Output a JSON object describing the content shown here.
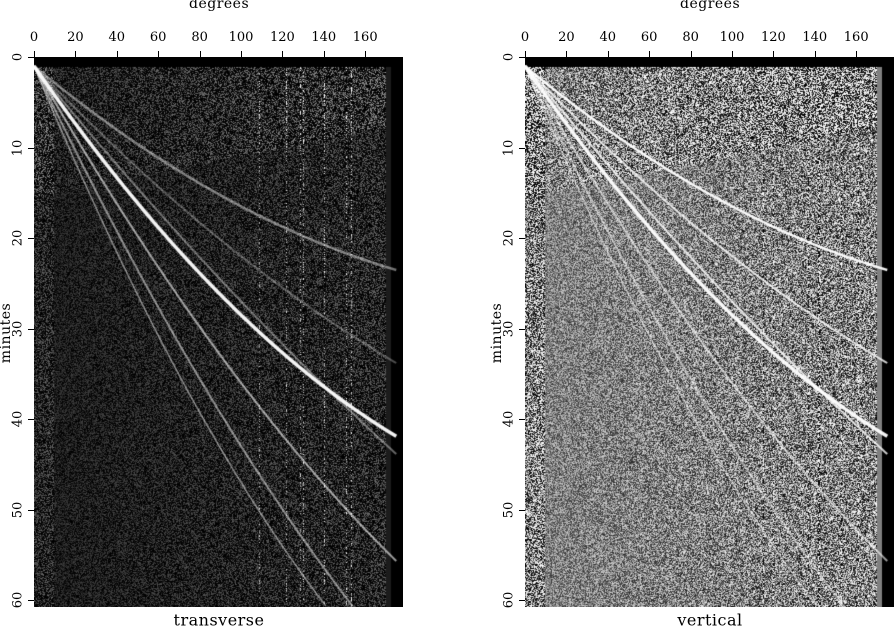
{
  "panels": [
    {
      "title": "transverse",
      "xlabel": "degrees",
      "ylabel": "minutes",
      "xticks": [
        "0",
        "20",
        "40",
        "60",
        "80",
        "100",
        "120",
        "140",
        "160"
      ],
      "yticks": [
        "0",
        "10",
        "20",
        "30",
        "40",
        "50",
        "60"
      ],
      "xlim": [
        0,
        178
      ],
      "ylim": [
        0,
        61
      ],
      "background": "#1a1a1a"
    },
    {
      "title": "vertical",
      "xlabel": "degrees",
      "ylabel": "minutes",
      "xticks": [
        "0",
        "20",
        "40",
        "60",
        "80",
        "100",
        "120",
        "140",
        "160"
      ],
      "yticks": [
        "0",
        "10",
        "20",
        "30",
        "40",
        "50",
        "60"
      ],
      "xlim": [
        0,
        178
      ],
      "ylim": [
        0,
        61
      ],
      "background": "#808080"
    }
  ]
}
